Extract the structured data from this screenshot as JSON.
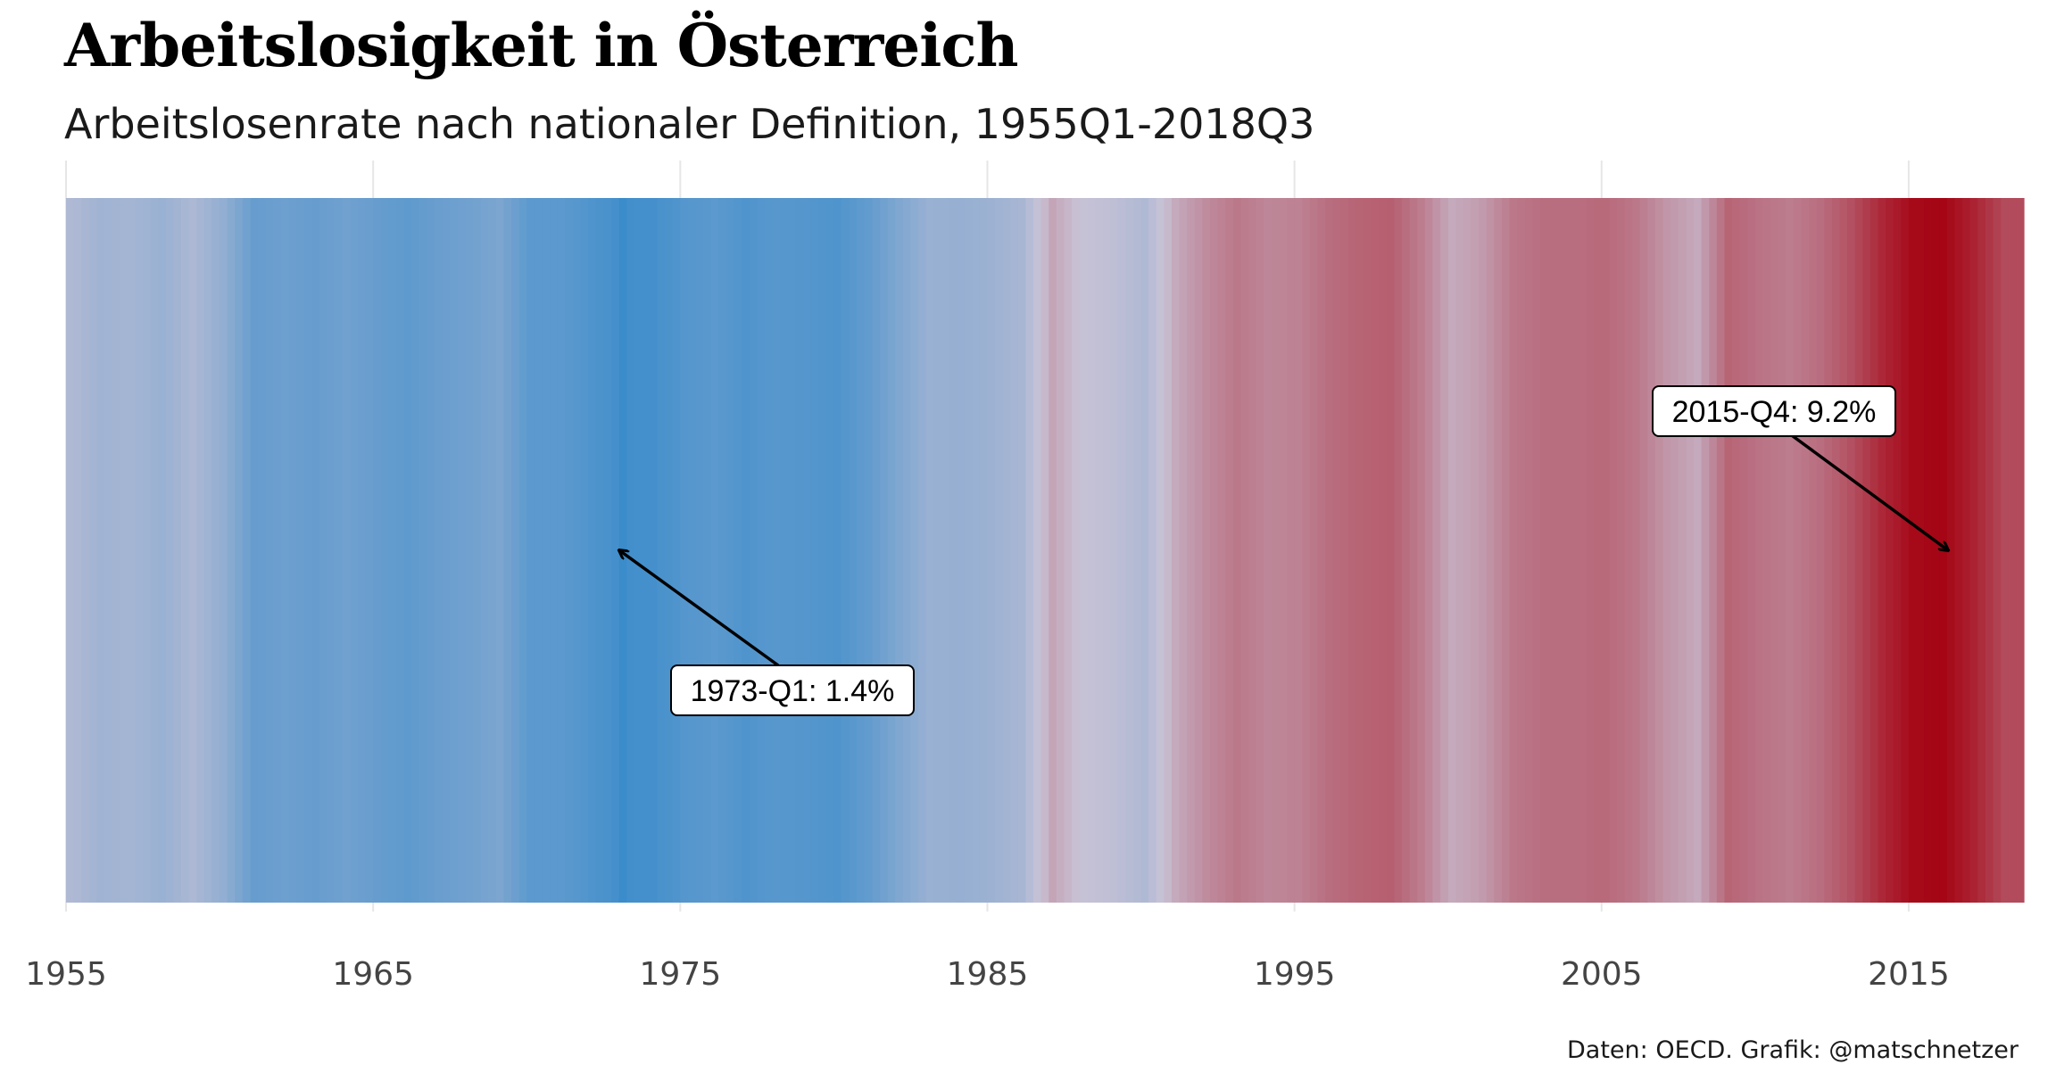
{
  "chart_data": {
    "type": "heatmap",
    "title": "Arbeitslosigkeit in Österreich",
    "subtitle": "Arbeitslosenrate nach nationaler Definition, 1955Q1-2018Q3",
    "caption": "Daten: OECD. Grafik: @matschnetzer",
    "xlabel": "",
    "ylabel": "",
    "x_start": 1955,
    "x_end": 2018.75,
    "x_ticks": [
      1955,
      1965,
      1975,
      1985,
      1995,
      2005,
      2015
    ],
    "x_tick_labels": [
      "1955",
      "1965",
      "1975",
      "1985",
      "1995",
      "2005",
      "2015"
    ],
    "grid": true,
    "legend": "none",
    "color_scale": {
      "low_value": 1.4,
      "mid_value": 5.3,
      "high_value": 9.2,
      "low_color": "#3a8ccb",
      "mid_color": "#c9c3d6",
      "high_color": "#a4000f"
    },
    "quarters_note": "one stripe per quarter from 1955-Q1 to 2018-Q3",
    "annual_values": [
      {
        "year": 1955,
        "value": 4.6
      },
      {
        "year": 1956,
        "value": 4.2
      },
      {
        "year": 1957,
        "value": 4.3
      },
      {
        "year": 1958,
        "value": 4.0
      },
      {
        "year": 1959,
        "value": 4.5
      },
      {
        "year": 1960,
        "value": 3.8
      },
      {
        "year": 1961,
        "value": 2.6
      },
      {
        "year": 1962,
        "value": 2.8
      },
      {
        "year": 1963,
        "value": 2.6
      },
      {
        "year": 1964,
        "value": 2.9
      },
      {
        "year": 1965,
        "value": 2.6
      },
      {
        "year": 1966,
        "value": 2.4
      },
      {
        "year": 1967,
        "value": 2.7
      },
      {
        "year": 1968,
        "value": 2.9
      },
      {
        "year": 1969,
        "value": 3.2
      },
      {
        "year": 1970,
        "value": 2.3
      },
      {
        "year": 1971,
        "value": 2.3
      },
      {
        "year": 1972,
        "value": 2.0
      },
      {
        "year": 1973,
        "value": 1.6
      },
      {
        "year": 1974,
        "value": 1.7
      },
      {
        "year": 1975,
        "value": 2.1
      },
      {
        "year": 1976,
        "value": 2.3
      },
      {
        "year": 1977,
        "value": 2.0
      },
      {
        "year": 1978,
        "value": 2.2
      },
      {
        "year": 1979,
        "value": 2.1
      },
      {
        "year": 1980,
        "value": 2.0
      },
      {
        "year": 1981,
        "value": 2.5
      },
      {
        "year": 1982,
        "value": 3.3
      },
      {
        "year": 1983,
        "value": 4.0
      },
      {
        "year": 1984,
        "value": 3.9
      },
      {
        "year": 1985,
        "value": 4.1
      },
      {
        "year": 1986,
        "value": 4.4
      },
      {
        "year": 1987,
        "value": 5.9
      },
      {
        "year": 1988,
        "value": 5.2
      },
      {
        "year": 1989,
        "value": 5.0
      },
      {
        "year": 1990,
        "value": 4.6
      },
      {
        "year": 1991,
        "value": 5.8
      },
      {
        "year": 1992,
        "value": 6.4
      },
      {
        "year": 1993,
        "value": 6.8
      },
      {
        "year": 1994,
        "value": 6.5
      },
      {
        "year": 1995,
        "value": 6.6
      },
      {
        "year": 1996,
        "value": 7.0
      },
      {
        "year": 1997,
        "value": 7.2
      },
      {
        "year": 1998,
        "value": 7.3
      },
      {
        "year": 1999,
        "value": 6.7
      },
      {
        "year": 2000,
        "value": 5.8
      },
      {
        "year": 2001,
        "value": 6.1
      },
      {
        "year": 2002,
        "value": 6.8
      },
      {
        "year": 2003,
        "value": 7.0
      },
      {
        "year": 2004,
        "value": 7.0
      },
      {
        "year": 2005,
        "value": 7.1
      },
      {
        "year": 2006,
        "value": 6.8
      },
      {
        "year": 2007,
        "value": 6.2
      },
      {
        "year": 2008,
        "value": 5.8
      },
      {
        "year": 2009,
        "value": 7.2
      },
      {
        "year": 2010,
        "value": 6.9
      },
      {
        "year": 2011,
        "value": 6.7
      },
      {
        "year": 2012,
        "value": 7.0
      },
      {
        "year": 2013,
        "value": 7.6
      },
      {
        "year": 2014,
        "value": 8.4
      },
      {
        "year": 2015,
        "value": 9.0
      },
      {
        "year": 2016,
        "value": 9.1
      },
      {
        "year": 2017,
        "value": 8.5
      },
      {
        "year": 2018,
        "value": 7.7
      }
    ],
    "annotations": [
      {
        "text": "1973-Q1: 1.4%",
        "x": 1973.0,
        "value": 1.4
      },
      {
        "text": "2015-Q4: 9.2%",
        "x": 2015.875,
        "value": 9.2
      }
    ]
  }
}
